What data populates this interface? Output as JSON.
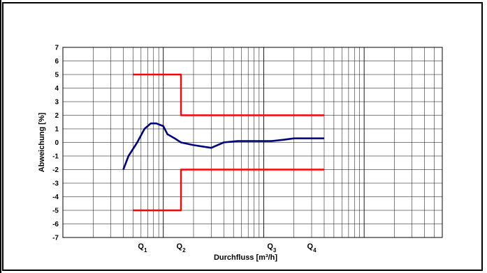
{
  "chart_data": {
    "type": "line",
    "title": "",
    "xlabel": "Durchfluss [m³/h]",
    "ylabel": "Abweichung [%]",
    "x_scale": "log",
    "x_tick_labels": [
      {
        "label": "Q",
        "sub": "1",
        "x": 0.62
      },
      {
        "label": "Q",
        "sub": "2",
        "x": 1.5
      },
      {
        "label": "Q",
        "sub": "3",
        "x": 12
      },
      {
        "label": "Q",
        "sub": "4",
        "x": 30
      }
    ],
    "xlim": [
      0.1,
      600
    ],
    "ylim": [
      -7,
      7
    ],
    "y_ticks": [
      "7",
      "6",
      "5",
      "4",
      "3",
      "2",
      "1",
      "0",
      "-1",
      "-2",
      "-3",
      "-4",
      "-5",
      "-6",
      "-7"
    ],
    "grid": true,
    "series": [
      {
        "color": "#000080",
        "points": [
          [
            0.4,
            -2.0
          ],
          [
            0.45,
            -1.0
          ],
          [
            0.55,
            0.0
          ],
          [
            0.65,
            1.0
          ],
          [
            0.75,
            1.4
          ],
          [
            0.85,
            1.4
          ],
          [
            1.0,
            1.2
          ],
          [
            1.1,
            0.6
          ],
          [
            1.3,
            0.3
          ],
          [
            1.5,
            0.0
          ],
          [
            2.0,
            -0.2
          ],
          [
            3.0,
            -0.4
          ],
          [
            4.0,
            0.0
          ],
          [
            5.5,
            0.1
          ],
          [
            8.0,
            0.1
          ],
          [
            12.0,
            0.1
          ],
          [
            16.0,
            0.2
          ],
          [
            20.0,
            0.3
          ],
          [
            40.0,
            0.3
          ]
        ]
      },
      {
        "color": "#ff0000",
        "points": [
          [
            0.5,
            5
          ],
          [
            1.5,
            5
          ],
          [
            1.5,
            2
          ],
          [
            40,
            2
          ]
        ]
      },
      {
        "color": "#ff0000",
        "points": [
          [
            0.5,
            -5
          ],
          [
            1.5,
            -5
          ],
          [
            1.5,
            -2
          ],
          [
            40,
            -2
          ]
        ]
      }
    ]
  }
}
